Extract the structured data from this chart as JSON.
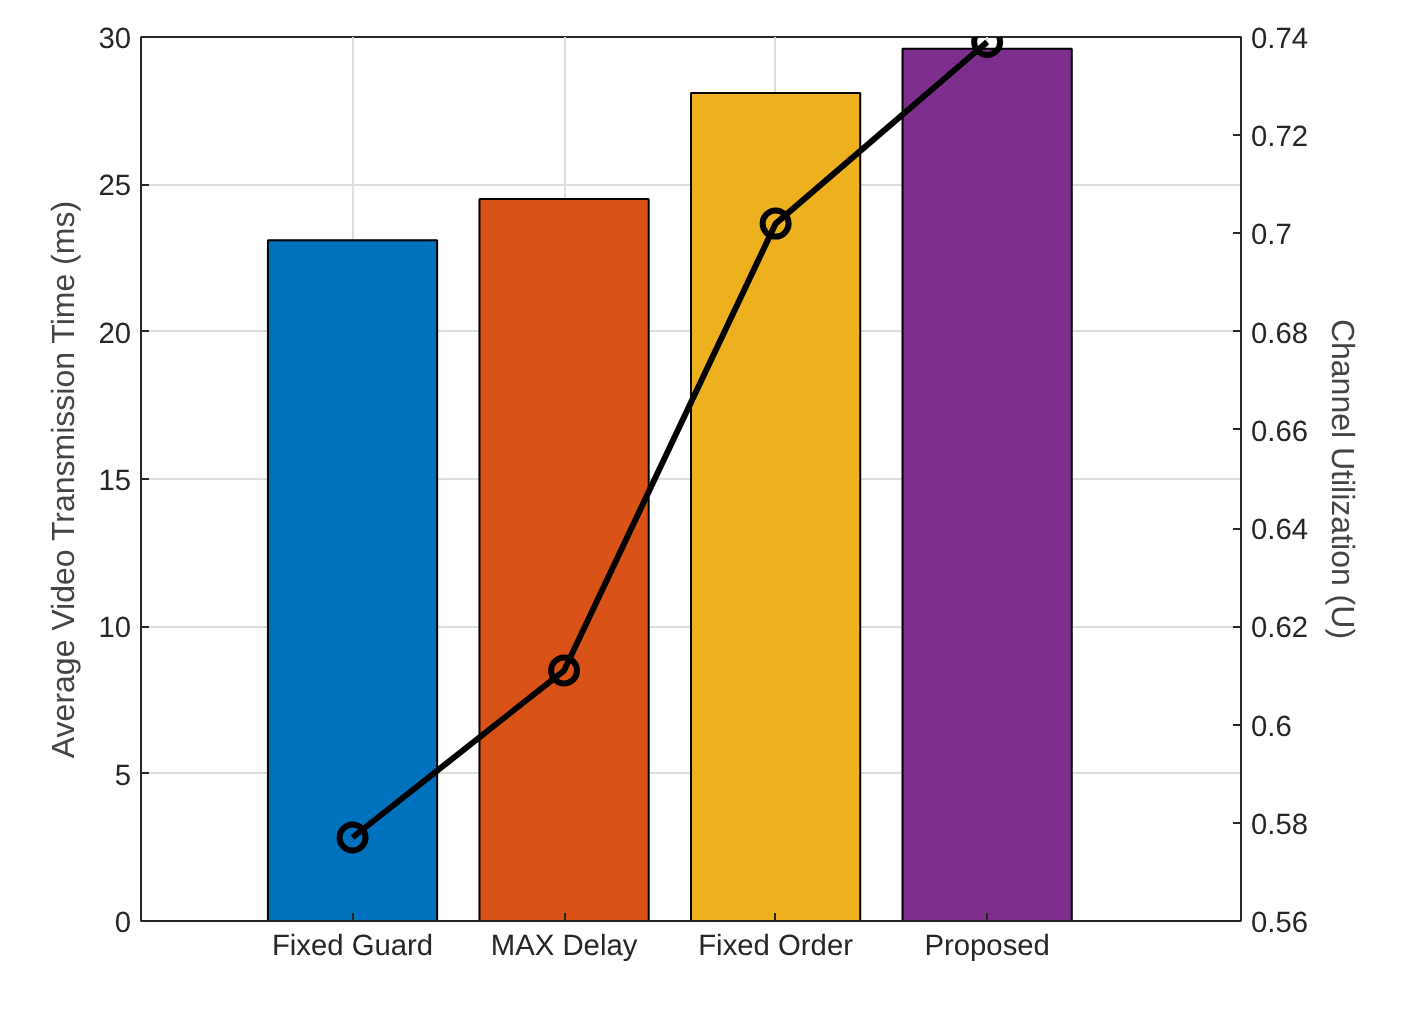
{
  "chart_data": {
    "type": "bar",
    "categories": [
      "Fixed Guard",
      "MAX Delay",
      "Fixed Order",
      "Proposed"
    ],
    "series": [
      {
        "colors": [
          "#0072bd",
          "#d95319",
          "#edb120",
          "#7e2f8e"
        ],
        "values": [
          23.1,
          24.5,
          28.1,
          29.6
        ]
      },
      {
        "type": "line",
        "axis": "y2",
        "color": "#000000",
        "values": [
          0.577,
          0.611,
          0.702,
          0.739
        ],
        "marker": "circle",
        "line_style": "solid"
      }
    ],
    "ylabel": "Average Video Transmission Time (ms)",
    "y2label": "Channel Utilization (U)",
    "ylim": [
      0,
      30
    ],
    "yticks": [
      0,
      5,
      10,
      15,
      20,
      25,
      30
    ],
    "y2lim": [
      0.56,
      0.74
    ],
    "y2ticks": [
      {
        "value": 0.56,
        "label": "0.56"
      },
      {
        "value": 0.58,
        "label": "0.58"
      },
      {
        "value": 0.6,
        "label": "0.6"
      },
      {
        "value": 0.62,
        "label": "0.62"
      },
      {
        "value": 0.64,
        "label": "0.64"
      },
      {
        "value": 0.66,
        "label": "0.66"
      },
      {
        "value": 0.68,
        "label": "0.68"
      },
      {
        "value": 0.7,
        "label": "0.7"
      },
      {
        "value": 0.72,
        "label": "0.72"
      },
      {
        "value": 0.74,
        "label": "0.74"
      }
    ],
    "grid": true
  }
}
